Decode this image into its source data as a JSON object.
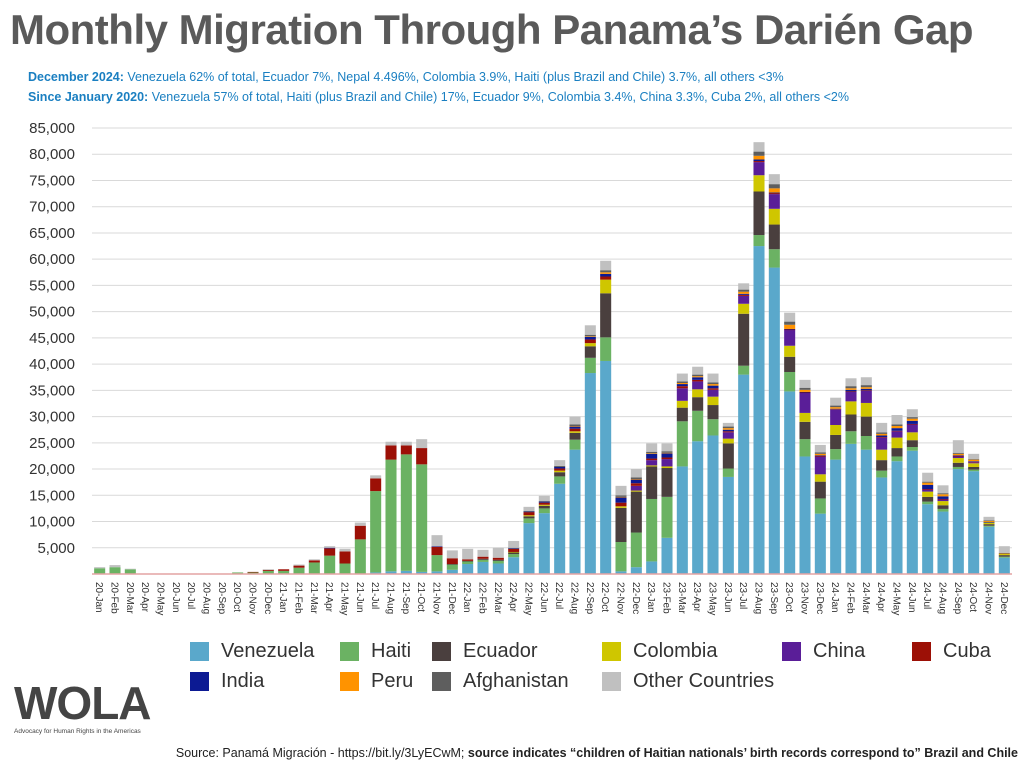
{
  "header": {
    "title": "Monthly Migration Through Panama’s Darién Gap",
    "sub1_label": "December 2024:",
    "sub1_text": " Venezuela 62% of total, Ecuador 7%, Nepal 4.496%, Colombia 3.9%, Haiti (plus Brazil and Chile) 3.7%, all others <3%",
    "sub2_label": "Since January 2020:",
    "sub2_text": " Venezuela 57% of total, Haiti (plus Brazil and Chile) 17%, Ecuador 9%, Colombia 3.4%, China 3.3%, Cuba 2%, all others <2%"
  },
  "logo": {
    "text": "WOLA",
    "tagline": "Advocacy for Human Rights in the Americas"
  },
  "footer": {
    "source_plain": "Source: Panamá Migración - https://bit.ly/3LyECwM; ",
    "source_bold": "source indicates “children of Haitian nationals’ birth records correspond to” Brazil and Chile"
  },
  "chart_data": {
    "type": "bar",
    "stacked": true,
    "title": "Monthly Migration Through Panama’s Darién Gap",
    "xlabel": "",
    "ylabel": "",
    "ylim": [
      0,
      85000
    ],
    "yticks": [
      5000,
      10000,
      15000,
      20000,
      25000,
      30000,
      35000,
      40000,
      45000,
      50000,
      55000,
      60000,
      65000,
      70000,
      75000,
      80000,
      85000
    ],
    "ytick_labels": [
      "5,000",
      "10,000",
      "15,000",
      "20,000",
      "25,000",
      "30,000",
      "35,000",
      "40,000",
      "45,000",
      "50,000",
      "55,000",
      "60,000",
      "65,000",
      "70,000",
      "75,000",
      "80,000",
      "85,000"
    ],
    "grid": true,
    "legend_position": "bottom",
    "categories": [
      "20-Jan",
      "20-Feb",
      "20-Mar",
      "20-Apr",
      "20-May",
      "20-Jun",
      "20-Jul",
      "20-Aug",
      "20-Sep",
      "20-Oct",
      "20-Nov",
      "20-Dec",
      "21-Jan",
      "21-Feb",
      "21-Mar",
      "21-Apr",
      "21-May",
      "21-Jun",
      "21-Jul",
      "21-Aug",
      "21-Sep",
      "21-Oct",
      "21-Nov",
      "21-Dec",
      "22-Jan",
      "22-Feb",
      "22-Mar",
      "22-Apr",
      "22-May",
      "22-Jun",
      "22-Jul",
      "22-Aug",
      "22-Sep",
      "22-Oct",
      "22-Nov",
      "22-Dec",
      "23-Jan",
      "23-Feb",
      "23-Mar",
      "23-Apr",
      "23-May",
      "23-Jun",
      "23-Jul",
      "23-Aug",
      "23-Sep",
      "23-Oct",
      "23-Nov",
      "23-Dec",
      "24-Jan",
      "24-Feb",
      "24-Mar",
      "24-Apr",
      "24-May",
      "24-Jun",
      "24-Jul",
      "24-Aug",
      "24-Sep",
      "24-Oct",
      "24-Nov",
      "24-Dec"
    ],
    "series": [
      {
        "name": "Venezuela",
        "color": "#5aa8cb",
        "values": [
          0,
          0,
          0,
          0,
          0,
          0,
          0,
          0,
          0,
          0,
          0,
          0,
          0,
          0,
          0,
          0,
          0,
          0,
          300,
          500,
          600,
          400,
          500,
          800,
          1900,
          2300,
          2000,
          3200,
          9700,
          11600,
          17200,
          23700,
          38300,
          40600,
          500,
          1300,
          2400,
          6900,
          20500,
          25300,
          26400,
          18500,
          38000,
          62500,
          58400,
          34800,
          22400,
          11500,
          21800,
          24800,
          23700,
          18400,
          21500,
          23500,
          13300,
          11900,
          20000,
          19600,
          9000,
          3100
        ]
      },
      {
        "name": "Haiti",
        "color": "#6bb263",
        "values": [
          1100,
          1300,
          900,
          0,
          0,
          100,
          0,
          0,
          100,
          300,
          300,
          600,
          600,
          1200,
          2200,
          3500,
          2000,
          6600,
          15500,
          21300,
          22200,
          20500,
          3100,
          1000,
          500,
          400,
          500,
          600,
          900,
          900,
          1400,
          1900,
          2900,
          4500,
          5600,
          6600,
          11900,
          7800,
          8600,
          5800,
          3100,
          1600,
          1700,
          2100,
          3500,
          3700,
          3300,
          2900,
          2000,
          2400,
          2600,
          1300,
          900,
          700,
          500,
          500,
          400,
          300,
          200,
          200
        ]
      },
      {
        "name": "Ecuador",
        "color": "#4a3f3e",
        "values": [
          0,
          0,
          0,
          0,
          0,
          0,
          0,
          0,
          0,
          0,
          0,
          0,
          0,
          0,
          0,
          0,
          0,
          0,
          0,
          0,
          0,
          0,
          0,
          100,
          100,
          200,
          200,
          300,
          400,
          500,
          800,
          1300,
          2200,
          8400,
          6500,
          7800,
          6200,
          5500,
          2600,
          2600,
          2700,
          4800,
          9900,
          8300,
          4700,
          2900,
          3300,
          3200,
          2700,
          3200,
          3700,
          2000,
          1600,
          1300,
          900,
          700,
          800,
          500,
          300,
          300
        ]
      },
      {
        "name": "Colombia",
        "color": "#cfc600",
        "values": [
          0,
          0,
          0,
          0,
          0,
          0,
          0,
          0,
          0,
          0,
          0,
          0,
          0,
          0,
          0,
          0,
          0,
          0,
          0,
          0,
          0,
          0,
          0,
          0,
          0,
          0,
          0,
          100,
          200,
          200,
          300,
          300,
          600,
          2600,
          300,
          200,
          200,
          300,
          1300,
          1500,
          1600,
          900,
          1900,
          3100,
          3000,
          2100,
          1700,
          1400,
          1900,
          2500,
          2600,
          2000,
          2000,
          1500,
          1000,
          800,
          900,
          700,
          300,
          200
        ]
      },
      {
        "name": "China",
        "color": "#5a1e98",
        "values": [
          0,
          0,
          0,
          0,
          0,
          0,
          0,
          0,
          0,
          0,
          0,
          0,
          0,
          0,
          0,
          0,
          0,
          0,
          0,
          0,
          0,
          0,
          0,
          0,
          0,
          0,
          0,
          0,
          0,
          0,
          0,
          0,
          0,
          0,
          0,
          900,
          1000,
          1400,
          2400,
          1500,
          1300,
          1200,
          1500,
          2500,
          2800,
          3000,
          3800,
          3400,
          2900,
          1800,
          2300,
          2300,
          1200,
          1500,
          400,
          300,
          300,
          200,
          0,
          0
        ]
      },
      {
        "name": "Cuba",
        "color": "#9c1006",
        "values": [
          0,
          0,
          0,
          0,
          0,
          0,
          0,
          0,
          0,
          0,
          100,
          200,
          300,
          400,
          400,
          1400,
          2300,
          2600,
          2400,
          2700,
          1700,
          3100,
          1600,
          1100,
          300,
          400,
          400,
          600,
          600,
          400,
          400,
          500,
          700,
          600,
          700,
          500,
          300,
          300,
          400,
          300,
          300,
          200,
          200,
          200,
          200,
          100,
          100,
          100,
          100,
          100,
          100,
          100,
          100,
          100,
          100,
          100,
          100,
          100,
          0,
          0
        ]
      },
      {
        "name": "India",
        "color": "#0c1a93",
        "values": [
          0,
          0,
          0,
          0,
          0,
          0,
          0,
          0,
          0,
          0,
          0,
          0,
          0,
          0,
          0,
          100,
          0,
          0,
          0,
          0,
          0,
          0,
          100,
          0,
          0,
          0,
          0,
          100,
          100,
          200,
          300,
          400,
          500,
          500,
          1000,
          700,
          900,
          800,
          400,
          500,
          500,
          300,
          200,
          300,
          100,
          100,
          100,
          100,
          100,
          300,
          300,
          300,
          500,
          600,
          800,
          500,
          100,
          100,
          100,
          0
        ]
      },
      {
        "name": "Peru",
        "color": "#ff9300",
        "values": [
          0,
          0,
          0,
          0,
          0,
          0,
          0,
          0,
          0,
          0,
          0,
          0,
          0,
          0,
          0,
          0,
          0,
          0,
          0,
          0,
          0,
          0,
          0,
          0,
          0,
          0,
          0,
          0,
          0,
          0,
          0,
          100,
          100,
          300,
          100,
          100,
          100,
          100,
          200,
          200,
          300,
          300,
          400,
          700,
          800,
          800,
          400,
          300,
          300,
          300,
          300,
          300,
          400,
          400,
          400,
          400,
          300,
          300,
          200,
          100
        ]
      },
      {
        "name": "Afghanistan",
        "color": "#5e5e5e",
        "values": [
          0,
          0,
          0,
          0,
          0,
          0,
          0,
          0,
          0,
          0,
          0,
          0,
          0,
          0,
          0,
          0,
          0,
          0,
          0,
          0,
          0,
          0,
          0,
          0,
          0,
          0,
          0,
          100,
          100,
          100,
          200,
          300,
          300,
          400,
          300,
          300,
          300,
          300,
          300,
          300,
          300,
          300,
          400,
          800,
          800,
          600,
          400,
          300,
          300,
          400,
          400,
          300,
          300,
          300,
          200,
          200,
          200,
          100,
          100,
          100
        ]
      },
      {
        "name": "Other Countries",
        "color": "#c0c0c0",
        "values": [
          200,
          400,
          100,
          0,
          0,
          0,
          0,
          0,
          0,
          0,
          0,
          100,
          0,
          200,
          200,
          300,
          500,
          600,
          600,
          700,
          700,
          1700,
          2100,
          1500,
          2000,
          1300,
          1900,
          1300,
          800,
          1000,
          1100,
          1500,
          1800,
          1800,
          1800,
          1600,
          1600,
          1500,
          1500,
          1500,
          1700,
          700,
          1200,
          1800,
          1900,
          1700,
          1500,
          1400,
          1500,
          1500,
          1500,
          1800,
          1800,
          1500,
          1700,
          1500,
          2400,
          1000,
          700,
          1300
        ]
      }
    ]
  }
}
